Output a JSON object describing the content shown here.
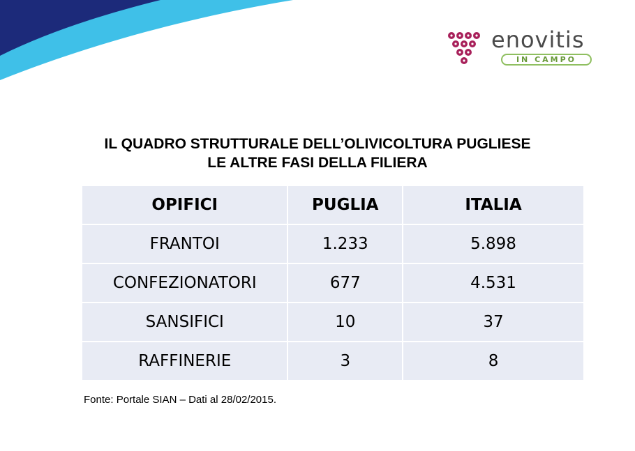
{
  "brand": {
    "name": "enovitis",
    "tagline": "IN CAMPO",
    "colors": {
      "grape": "#a8205a",
      "pill": "#8fbf60",
      "navy": "#1c2a7a",
      "cyan": "#3fc0e8"
    }
  },
  "title": {
    "line1": "IL QUADRO STRUTTURALE DELL’OLIVICOLTURA PUGLIESE",
    "line2": "LE ALTRE FASI DELLA FILIERA"
  },
  "table": {
    "headers": [
      "OPIFICI",
      "PUGLIA",
      "ITALIA"
    ],
    "rows": [
      [
        "FRANTOI",
        "1.233",
        "5.898"
      ],
      [
        "CONFEZIONATORI",
        "677",
        "4.531"
      ],
      [
        "SANSIFICI",
        "10",
        "37"
      ],
      [
        "RAFFINERIE",
        "3",
        "8"
      ]
    ]
  },
  "source": "Fonte: Portale SIAN – Dati al 28/02/2015."
}
